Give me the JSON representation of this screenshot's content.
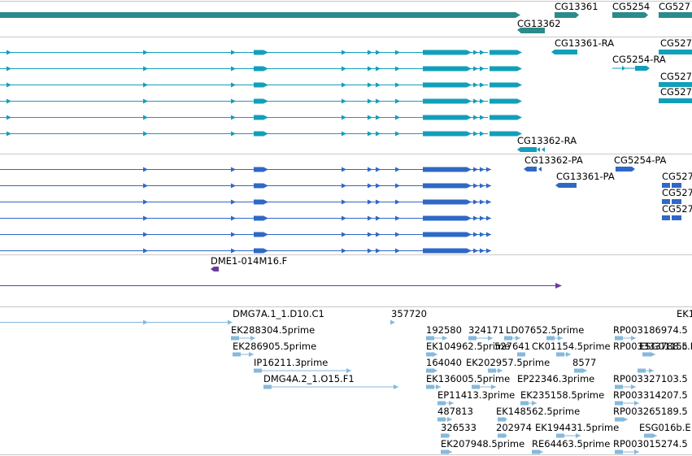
{
  "colors": {
    "gene": "#2b8a8a",
    "transcript": "#129fba",
    "protein": "#2f68c6",
    "clone": "#6a3d9a",
    "est": "#86b9dc",
    "separator": "#c8c8c8"
  },
  "tracks": {
    "genes": {
      "labels": [
        "CG13361",
        "CG5254",
        "CG527",
        "CG13362"
      ]
    },
    "transcripts": {
      "labels": [
        "CG13361-RA",
        "CG527",
        "CG5254-RA",
        "CG527",
        "CG527",
        "CG13362-RA"
      ]
    },
    "proteins": {
      "labels": [
        "CG13362-PA",
        "CG5254-PA",
        "CG13361-PA",
        "CG527",
        "CG527",
        "CG527"
      ]
    },
    "clones": {
      "labels": [
        "DME1-014M16.F"
      ]
    },
    "ests": {
      "labels": [
        "DMG7A.1_1.D10.C1",
        "357720",
        "EK1",
        "EK288304.5prime",
        "192580",
        "324171",
        "LD07652.5prime",
        "RP003186974.5",
        "EK286905.5prime",
        "EK104962.5prime",
        "527641",
        "CK01154.5prime",
        "RP003333788.5",
        "ESG0115c.I",
        "IP16211.3prime",
        "164040",
        "EK202957.5prime",
        "8577",
        "DMG4A.2_1.O15.F1",
        "EK136005.5prime",
        "EP22346.3prime",
        "RP003327103.5",
        "EP11413.3prime",
        "EK235158.5prime",
        "RP003314207.5",
        "487813",
        "EK148562.5prime",
        "RP003265189.5",
        "326533",
        "202974",
        "EK194431.5prime",
        "ESG016b.E",
        "EK207948.5prime",
        "RE64463.5prime",
        "RP003015274.5"
      ]
    }
  }
}
